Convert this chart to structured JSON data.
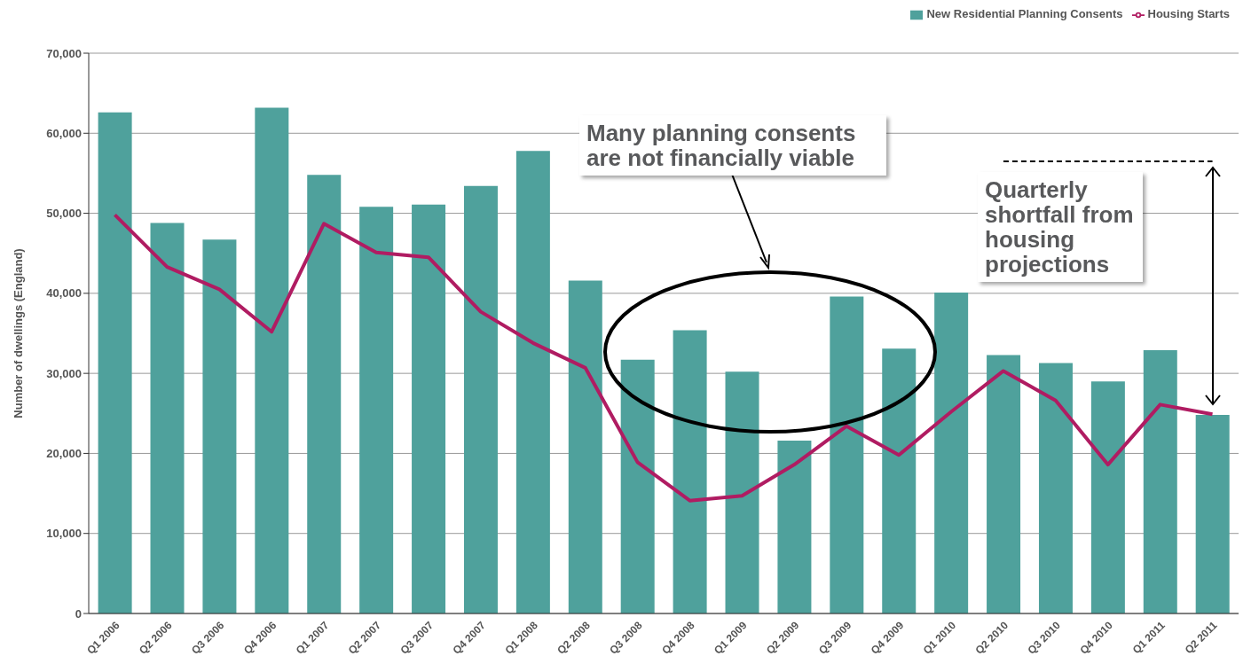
{
  "chart_data": {
    "type": "bar",
    "ylabel": "Number of dwellings (England)",
    "categories": [
      "Q1 2006",
      "Q2 2006",
      "Q3 2006",
      "Q4 2006",
      "Q1 2007",
      "Q2 2007",
      "Q3 2007",
      "Q4 2007",
      "Q1 2008",
      "Q2 2008",
      "Q3 2008",
      "Q4 2008",
      "Q1 2009",
      "Q2 2009",
      "Q3 2009",
      "Q4 2009",
      "Q1 2010",
      "Q2 2010",
      "Q3 2010",
      "Q4 2010",
      "Q1 2011",
      "Q2 2011"
    ],
    "series": [
      {
        "name": "New Residential Planning Consents",
        "color": "#4fa19c",
        "values": [
          62600,
          48800,
          46700,
          63200,
          54800,
          50800,
          51100,
          53400,
          57800,
          41600,
          31700,
          35400,
          30200,
          21600,
          39600,
          33100,
          40100,
          32300,
          31300,
          29000,
          32900,
          24800
        ]
      },
      {
        "name": "Housing Starts",
        "type": "line",
        "color": "#b01c62",
        "values": [
          49800,
          43300,
          40500,
          35200,
          48700,
          45100,
          44500,
          37700,
          33800,
          30700,
          18900,
          14100,
          14700,
          18600,
          23400,
          19800,
          25200,
          30300,
          26600,
          18600,
          26100,
          24900
        ]
      }
    ],
    "ylim": [
      0,
      70000
    ],
    "yticks": [
      0,
      {
        "value": 10000,
        "label": "10,000"
      },
      {
        "value": 20000,
        "label": "20,000"
      },
      {
        "value": 30000,
        "label": "30,000"
      },
      {
        "value": 40000,
        "label": "40,000"
      },
      {
        "value": 50000,
        "label": "50,000"
      },
      {
        "value": 60000,
        "label": "60,000"
      },
      {
        "value": 70000,
        "label": "70,000"
      }
    ],
    "grid": "y",
    "legend": "top right",
    "marker": "none",
    "line_style": "solid",
    "ref_lines": [
      {
        "axis": "y",
        "value": 56500,
        "color": "#000000",
        "line_style": "dashed"
      }
    ],
    "annotations": [
      "Many planning consents are not financially viable",
      "Quarterly shortfall from housing projections"
    ]
  }
}
